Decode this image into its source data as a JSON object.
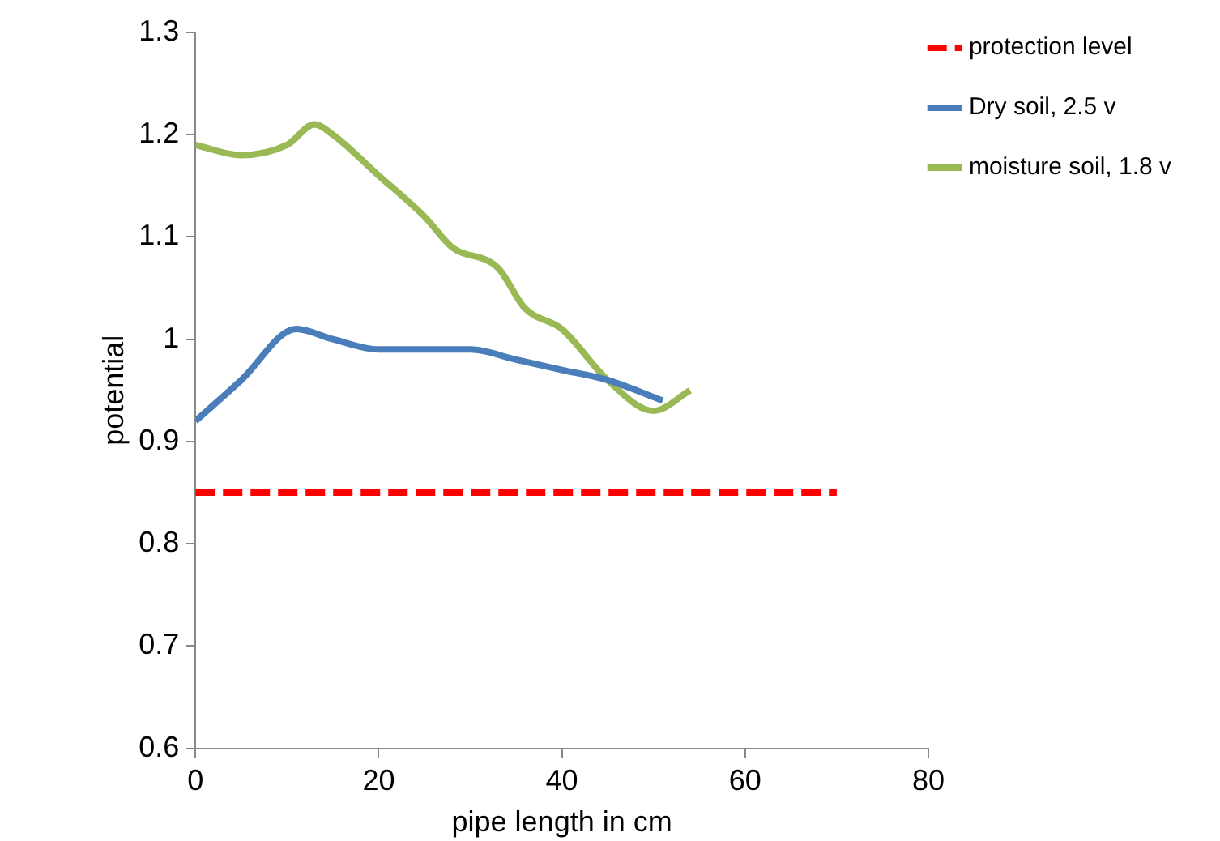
{
  "chart_data": {
    "type": "line",
    "xlabel": "pipe length in cm",
    "ylabel": "potential",
    "xlim": [
      0,
      80
    ],
    "xticks": [
      0,
      20,
      40,
      60,
      80
    ],
    "ylim": [
      0.6,
      1.3
    ],
    "yticks": [
      0.6,
      0.7,
      0.8,
      0.9,
      1,
      1.1,
      1.2,
      1.3
    ],
    "grid": false,
    "legend": "top right",
    "marker": "none",
    "line_style": "solid",
    "series": [
      {
        "name": "protection level",
        "color": "#ff0000",
        "line_style": "dashed",
        "x": [
          0,
          70
        ],
        "values": [
          0.85,
          0.85
        ]
      },
      {
        "name": "Dry soil, 2.5 v",
        "color": "#4a7ebb",
        "x": [
          0,
          5,
          11,
          15,
          20,
          25,
          30,
          35,
          40,
          45,
          51
        ],
        "values": [
          0.92,
          0.96,
          1.01,
          1,
          0.99,
          0.99,
          0.99,
          0.98,
          0.97,
          0.96,
          0.94
        ]
      },
      {
        "name": "moisture soil, 1.8 v",
        "color": "#98b954",
        "x": [
          0,
          5,
          10,
          13,
          15,
          20,
          25,
          28,
          33,
          36,
          40,
          45,
          50,
          54
        ],
        "values": [
          1.19,
          1.18,
          1.19,
          1.21,
          1.2,
          1.16,
          1.12,
          1.09,
          1.07,
          1.03,
          1.01,
          0.96,
          0.93,
          0.95
        ]
      }
    ]
  }
}
